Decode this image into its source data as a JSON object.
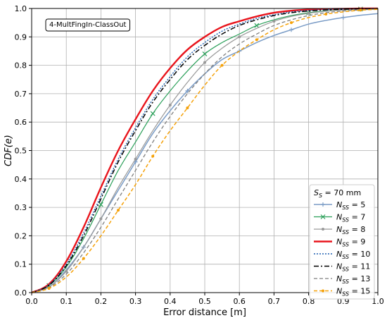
{
  "chart_data": {
    "type": "line",
    "xlabel": "Error distance [m]",
    "ylabel": "CDF(e)",
    "xlim": [
      0.0,
      1.0
    ],
    "ylim": [
      0.0,
      1.0
    ],
    "xticks": [
      "0.0",
      "0.1",
      "0.2",
      "0.3",
      "0.4",
      "0.5",
      "0.6",
      "0.7",
      "0.8",
      "0.9",
      "1.0"
    ],
    "yticks": [
      "0.0",
      "0.1",
      "0.2",
      "0.3",
      "0.4",
      "0.5",
      "0.6",
      "0.7",
      "0.8",
      "0.9",
      "1.0"
    ],
    "grid": true,
    "legend_placement": "bottom-right",
    "legend_title": "S_S = 70 mm",
    "annotation": "4-MultFingIn-ClassOut",
    "series": [
      {
        "name": "N_SS = 5",
        "subscript": "SS",
        "num": "5",
        "color": "#7a9cc6",
        "dash": "",
        "width": 1.5,
        "marker": "plus",
        "x": [
          0,
          0.05,
          0.1,
          0.15,
          0.2,
          0.25,
          0.3,
          0.35,
          0.4,
          0.45,
          0.5,
          0.55,
          0.6,
          0.65,
          0.7,
          0.75,
          0.8,
          0.85,
          0.9,
          0.95,
          1.0
        ],
        "y": [
          0,
          0.02,
          0.08,
          0.16,
          0.26,
          0.36,
          0.46,
          0.56,
          0.64,
          0.71,
          0.77,
          0.82,
          0.85,
          0.88,
          0.905,
          0.925,
          0.945,
          0.958,
          0.968,
          0.976,
          0.982
        ]
      },
      {
        "name": "N_SS = 7",
        "subscript": "SS",
        "num": "7",
        "color": "#2ca05a",
        "dash": "",
        "width": 1.2,
        "marker": "x",
        "x": [
          0,
          0.05,
          0.1,
          0.15,
          0.2,
          0.25,
          0.3,
          0.35,
          0.4,
          0.45,
          0.5,
          0.55,
          0.6,
          0.65,
          0.7,
          0.75,
          0.8,
          0.85,
          0.9,
          0.95,
          1.0
        ],
        "y": [
          0,
          0.025,
          0.09,
          0.19,
          0.31,
          0.43,
          0.53,
          0.63,
          0.71,
          0.78,
          0.84,
          0.88,
          0.91,
          0.94,
          0.96,
          0.975,
          0.985,
          0.991,
          0.995,
          0.998,
          1.0
        ]
      },
      {
        "name": "N_SS = 8",
        "subscript": "SS",
        "num": "8",
        "color": "#999999",
        "dash": "",
        "width": 1.2,
        "marker": "dot",
        "x": [
          0,
          0.05,
          0.1,
          0.15,
          0.2,
          0.25,
          0.3,
          0.35,
          0.4,
          0.45,
          0.5,
          0.55,
          0.6,
          0.65,
          0.7,
          0.75,
          0.8,
          0.85,
          0.9,
          0.95,
          1.0
        ],
        "y": [
          0,
          0.02,
          0.075,
          0.16,
          0.26,
          0.37,
          0.47,
          0.57,
          0.66,
          0.74,
          0.81,
          0.86,
          0.9,
          0.93,
          0.955,
          0.972,
          0.983,
          0.99,
          0.995,
          0.998,
          1.0
        ]
      },
      {
        "name": "N_SS = 9",
        "subscript": "SS",
        "num": "9",
        "color": "#e8141c",
        "dash": "",
        "width": 2.4,
        "marker": "",
        "x": [
          0,
          0.05,
          0.1,
          0.15,
          0.2,
          0.25,
          0.3,
          0.35,
          0.4,
          0.45,
          0.5,
          0.55,
          0.6,
          0.65,
          0.7,
          0.75,
          0.8,
          0.85,
          0.9,
          0.95,
          1.0
        ],
        "y": [
          0,
          0.03,
          0.11,
          0.23,
          0.37,
          0.5,
          0.61,
          0.71,
          0.79,
          0.855,
          0.9,
          0.935,
          0.955,
          0.972,
          0.985,
          0.992,
          0.996,
          0.998,
          0.999,
          1.0,
          1.0
        ]
      },
      {
        "name": "N_SS = 10",
        "subscript": "SS",
        "num": "10",
        "color": "#1f5fb0",
        "dash": "2,2",
        "width": 1.4,
        "marker": "",
        "x": [
          0,
          0.05,
          0.1,
          0.15,
          0.2,
          0.25,
          0.3,
          0.35,
          0.4,
          0.45,
          0.5,
          0.55,
          0.6,
          0.65,
          0.7,
          0.75,
          0.8,
          0.85,
          0.9,
          0.95,
          1.0
        ],
        "y": [
          0,
          0.028,
          0.1,
          0.21,
          0.34,
          0.47,
          0.58,
          0.68,
          0.76,
          0.83,
          0.88,
          0.92,
          0.945,
          0.965,
          0.978,
          0.988,
          0.993,
          0.996,
          0.998,
          0.999,
          1.0
        ]
      },
      {
        "name": "N_SS = 11",
        "subscript": "SS",
        "num": "11",
        "color": "#000000",
        "dash": "7,3,2,3",
        "width": 1.5,
        "marker": "",
        "x": [
          0,
          0.05,
          0.1,
          0.15,
          0.2,
          0.25,
          0.3,
          0.35,
          0.4,
          0.45,
          0.5,
          0.55,
          0.6,
          0.65,
          0.7,
          0.75,
          0.8,
          0.85,
          0.9,
          0.95,
          1.0
        ],
        "y": [
          0,
          0.026,
          0.095,
          0.2,
          0.33,
          0.46,
          0.57,
          0.67,
          0.75,
          0.82,
          0.87,
          0.91,
          0.94,
          0.96,
          0.975,
          0.985,
          0.991,
          0.995,
          0.997,
          0.999,
          1.0
        ]
      },
      {
        "name": "N_SS = 13",
        "subscript": "SS",
        "num": "13",
        "color": "#7f7f7f",
        "dash": "5,3",
        "width": 1.3,
        "marker": "",
        "x": [
          0,
          0.05,
          0.1,
          0.15,
          0.2,
          0.25,
          0.3,
          0.35,
          0.4,
          0.45,
          0.5,
          0.55,
          0.6,
          0.65,
          0.7,
          0.75,
          0.8,
          0.85,
          0.9,
          0.95,
          1.0
        ],
        "y": [
          0,
          0.018,
          0.065,
          0.14,
          0.23,
          0.33,
          0.43,
          0.53,
          0.62,
          0.7,
          0.77,
          0.83,
          0.875,
          0.91,
          0.94,
          0.96,
          0.975,
          0.985,
          0.991,
          0.995,
          0.998
        ]
      },
      {
        "name": "N_SS = 15",
        "subscript": "SS",
        "num": "15",
        "color": "#f5a20a",
        "dash": "5,3",
        "width": 1.5,
        "marker": "dot",
        "x": [
          0,
          0.05,
          0.1,
          0.15,
          0.2,
          0.25,
          0.3,
          0.35,
          0.4,
          0.45,
          0.5,
          0.55,
          0.6,
          0.65,
          0.7,
          0.75,
          0.8,
          0.85,
          0.9,
          0.95,
          1.0
        ],
        "y": [
          0,
          0.015,
          0.055,
          0.12,
          0.2,
          0.29,
          0.38,
          0.48,
          0.57,
          0.65,
          0.73,
          0.8,
          0.85,
          0.89,
          0.925,
          0.95,
          0.968,
          0.98,
          0.988,
          0.994,
          0.997
        ]
      }
    ]
  }
}
